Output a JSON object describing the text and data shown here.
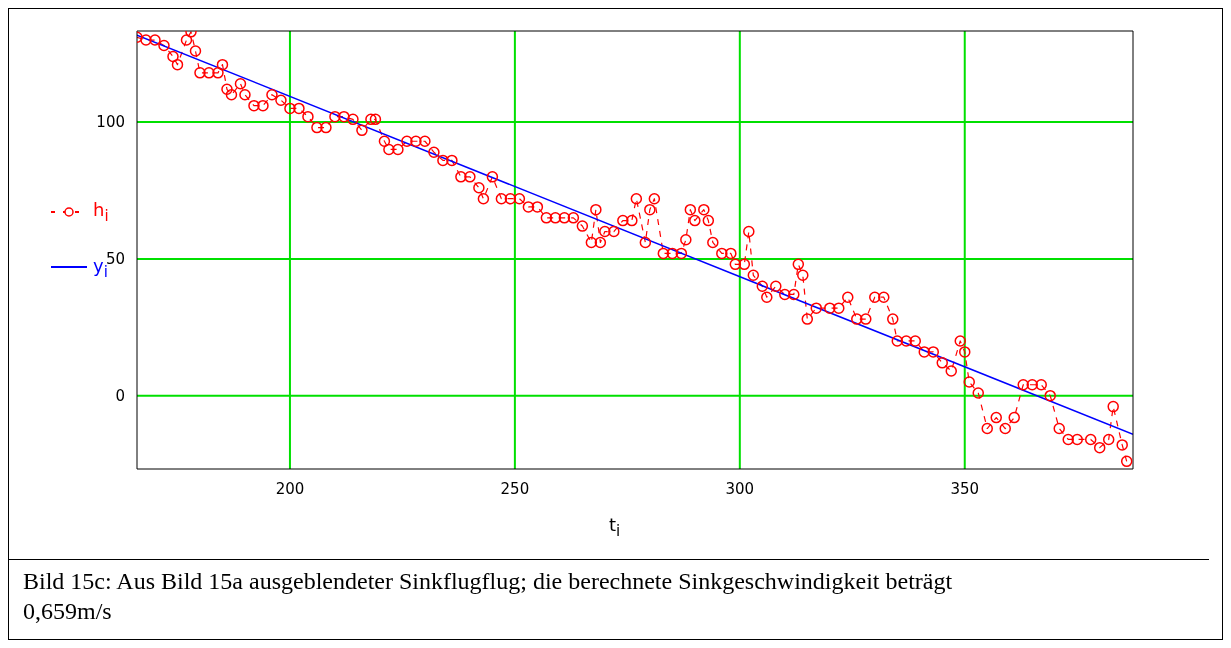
{
  "chart_data": {
    "type": "line",
    "xlabel": "t$_{i}$",
    "xlim": [
      166,
      387.4
    ],
    "xticks": [
      200,
      250,
      300,
      350
    ],
    "ylim": [
      -26.8,
      133.3
    ],
    "yticks": [
      0,
      50,
      100
    ],
    "grid": true,
    "legend": "left",
    "annotations": [
      "Bild 15c: Aus Bild 15a ausgeblendeter Sinkflugflug; die berechnete Sinkgeschwindigkeit beträgt  0,659m/s"
    ],
    "series": [
      {
        "name": "h$_{i}$",
        "color": "#ff0000",
        "marker": "circle",
        "line_style": "dashed",
        "x": [
          166,
          168,
          170,
          172,
          174,
          175,
          177,
          178,
          179,
          180,
          182,
          184,
          185,
          186,
          187,
          189,
          190,
          192,
          194,
          196,
          198,
          200,
          202,
          204,
          206,
          208,
          210,
          212,
          214,
          216,
          218,
          219,
          221,
          222,
          224,
          226,
          228,
          230,
          232,
          234,
          236,
          238,
          240,
          242,
          243,
          245,
          247,
          249,
          251,
          253,
          255,
          257,
          259,
          261,
          263,
          265,
          267,
          268,
          269,
          270,
          272,
          274,
          276,
          277,
          279,
          280,
          281,
          283,
          285,
          287,
          288,
          289,
          290,
          292,
          293,
          294,
          296,
          298,
          299,
          301,
          302,
          303,
          305,
          306,
          308,
          310,
          312,
          313,
          314,
          315,
          317,
          320,
          322,
          324,
          326,
          328,
          330,
          332,
          334,
          335,
          337,
          339,
          341,
          343,
          345,
          347,
          349,
          350,
          351,
          353,
          355,
          357,
          359,
          361,
          363,
          365,
          367,
          369,
          371,
          373,
          375,
          378,
          380,
          382,
          383,
          385,
          386
        ],
        "values": [
          131,
          130,
          130,
          128,
          124,
          121,
          130,
          133,
          126,
          118,
          118,
          118,
          121,
          112,
          110,
          114,
          110,
          106,
          106,
          110,
          108,
          105,
          105,
          102,
          98,
          98,
          102,
          102,
          101,
          97,
          101,
          101,
          93,
          90,
          90,
          93,
          93,
          93,
          89,
          86,
          86,
          80,
          80,
          76,
          72,
          80,
          72,
          72,
          72,
          69,
          69,
          65,
          65,
          65,
          65,
          62,
          56,
          68,
          56,
          60,
          60,
          64,
          64,
          72,
          56,
          68,
          72,
          52,
          52,
          52,
          57,
          68,
          64,
          68,
          64,
          56,
          52,
          52,
          48,
          48,
          60,
          44,
          40,
          36,
          40,
          37,
          37,
          48,
          44,
          28,
          32,
          32,
          32,
          36,
          28,
          28,
          36,
          36,
          28,
          20,
          20,
          20,
          16,
          16,
          12,
          9,
          20,
          16,
          5,
          1,
          -12,
          -8,
          -12,
          -8,
          4,
          4,
          4,
          0,
          -12,
          -16,
          -16,
          -16,
          -19,
          -16,
          -4,
          -18,
          -24
        ]
      },
      {
        "name": "y$_{i}$",
        "color": "#0000ff",
        "marker": "none",
        "line_style": "solid",
        "x": [
          166,
          387.4
        ],
        "values": [
          131.8,
          -14.1
        ]
      }
    ]
  }
}
